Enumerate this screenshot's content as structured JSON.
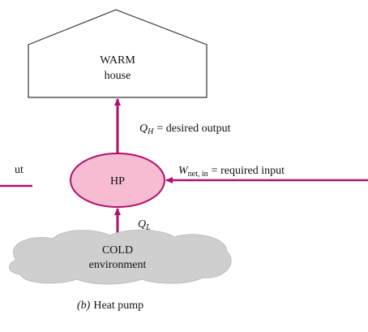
{
  "house": {
    "line1": "WARM",
    "line2": "house"
  },
  "output": {
    "symbol": "Q",
    "subscript": "H",
    "text": "= desired output"
  },
  "left_cut": "ut",
  "hp": "HP",
  "input": {
    "symbol": "W",
    "subscript": "net, in",
    "text": "= required input"
  },
  "low": {
    "symbol": "Q",
    "subscript": "L"
  },
  "cold": {
    "line1": "COLD",
    "line2": "environment"
  },
  "caption": {
    "label": "(b)",
    "text": "Heat pump"
  }
}
